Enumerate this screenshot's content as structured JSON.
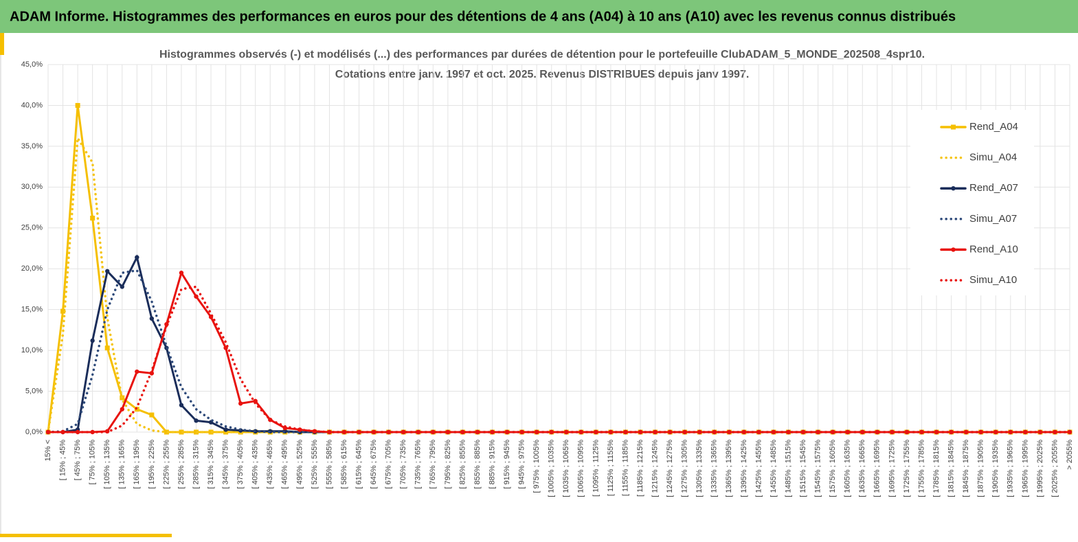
{
  "header": {
    "title": "ADAM Informe. Histogrammes des performances en euros pour des détentions de 4 ans (A04) à 10 ans (A10) avec les revenus connus distribués"
  },
  "chart_data": {
    "type": "line",
    "title": [
      "Histogrammes observés (-) et modélisés (...) des performances par durées de détention pour le portefeuille ClubADAM_5_MONDE_202508_4spr10.",
      "Cotations entre janv. 1997 et oct. 2025. Revenus DISTRIBUES depuis janv 1997."
    ],
    "categories": [
      "15% <",
      "[ 15% ; 45%",
      "[ 45% ; 75%",
      "[ 75% ; 105%",
      "[ 105% ; 135%",
      "[ 135% ; 165%",
      "[ 165% ; 195%",
      "[ 195% ; 225%",
      "[ 225% ; 255%",
      "[ 255% ; 285%",
      "[ 285% ; 315%",
      "[ 315% ; 345%",
      "[ 345% ; 375%",
      "[ 375% ; 405%",
      "[ 405% ; 435%",
      "[ 435% ; 465%",
      "[ 465% ; 495%",
      "[ 495% ; 525%",
      "[ 525% ; 555%",
      "[ 555% ; 585%",
      "[ 585% ; 615%",
      "[ 615% ; 645%",
      "[ 645% ; 675%",
      "[ 675% ; 705%",
      "[ 705% ; 735%",
      "[ 735% ; 765%",
      "[ 765% ; 795%",
      "[ 795% ; 825%",
      "[ 825% ; 855%",
      "[ 855% ; 885%",
      "[ 885% ; 915%",
      "[ 915% ; 945%",
      "[ 945% ; 975%",
      "[ 975% ; 1005%",
      "[ 1005% ; 1035%",
      "[ 1035% ; 1065%",
      "[ 1065% ; 1095%",
      "[ 1095% ; 1125%",
      "[ 1125% ; 1155%",
      "[ 1155% ; 1185%",
      "[ 1185% ; 1215%",
      "[ 1215% ; 1245%",
      "[ 1245% ; 1275%",
      "[ 1275% ; 1305%",
      "[ 1305% ; 1335%",
      "[ 1335% ; 1365%",
      "[ 1365% ; 1395%",
      "[ 1395% ; 1425%",
      "[ 1425% ; 1455%",
      "[ 1455% ; 1485%",
      "[ 1485% ; 1515%",
      "[ 1515% ; 1545%",
      "[ 1545% ; 1575%",
      "[ 1575% ; 1605%",
      "[ 1605% ; 1635%",
      "[ 1635% ; 1665%",
      "[ 1665% ; 1695%",
      "[ 1695% ; 1725%",
      "[ 1725% ; 1755%",
      "[ 1755% ; 1785%",
      "[ 1785% ; 1815%",
      "[ 1815% ; 1845%",
      "[ 1845% ; 1875%",
      "[ 1875% ; 1905%",
      "[ 1905% ; 1935%",
      "[ 1935% ; 1965%",
      "[ 1965% ; 1995%",
      "[ 1995% ; 2025%",
      "[ 2025% ; 2055%",
      "> 2055%"
    ],
    "series": [
      {
        "name": "Rend_A04",
        "color": "#f5bf00",
        "dash": "solid",
        "marker": "square",
        "values": [
          0,
          14.8,
          40,
          26.2,
          10.3,
          4.2,
          2.8,
          2.1,
          0,
          0,
          0,
          0,
          0,
          0,
          0,
          0,
          0,
          0,
          0,
          0,
          0,
          0,
          0,
          0,
          0,
          0,
          0,
          0,
          0,
          0,
          0,
          0,
          0,
          0,
          0,
          0,
          0,
          0,
          0,
          0,
          0,
          0,
          0,
          0,
          0,
          0,
          0,
          0,
          0,
          0,
          0,
          0,
          0,
          0,
          0,
          0,
          0,
          0,
          0,
          0,
          0,
          0,
          0,
          0,
          0,
          0,
          0,
          0,
          0,
          0
        ]
      },
      {
        "name": "Simu_A04",
        "color": "#f5c518",
        "dash": "dotted",
        "marker": null,
        "values": [
          0,
          12,
          36,
          33,
          14,
          4,
          1,
          0.2,
          0,
          0,
          0,
          0,
          0,
          0,
          0,
          0,
          0,
          0,
          0,
          0,
          0,
          0,
          0,
          0,
          0,
          0,
          0,
          0,
          0,
          0,
          0,
          0,
          0,
          0,
          0,
          0,
          0,
          0,
          0,
          0,
          0,
          0,
          0,
          0,
          0,
          0,
          0,
          0,
          0,
          0,
          0,
          0,
          0,
          0,
          0,
          0,
          0,
          0,
          0,
          0,
          0,
          0,
          0,
          0,
          0,
          0,
          0,
          0,
          0,
          0
        ]
      },
      {
        "name": "Rend_A07",
        "color": "#1a2d5a",
        "dash": "solid",
        "marker": "circle",
        "values": [
          0,
          0,
          0.3,
          11.2,
          19.7,
          17.8,
          21.4,
          13.9,
          10.3,
          3.3,
          1.4,
          1.2,
          0.3,
          0.2,
          0.1,
          0.1,
          0.1,
          0,
          0,
          0,
          0,
          0,
          0,
          0,
          0,
          0,
          0,
          0,
          0,
          0,
          0,
          0,
          0,
          0,
          0,
          0,
          0,
          0,
          0,
          0,
          0,
          0,
          0,
          0,
          0,
          0,
          0,
          0,
          0,
          0,
          0,
          0,
          0,
          0,
          0,
          0,
          0,
          0,
          0,
          0,
          0,
          0,
          0,
          0,
          0,
          0,
          0,
          0,
          0,
          0
        ]
      },
      {
        "name": "Simu_A07",
        "color": "#2e4a7a",
        "dash": "dotted",
        "marker": null,
        "values": [
          0,
          0.1,
          1,
          7,
          15,
          19.5,
          19.8,
          16,
          10.5,
          5.5,
          2.8,
          1.5,
          0.7,
          0.3,
          0.1,
          0,
          0,
          0,
          0,
          0,
          0,
          0,
          0,
          0,
          0,
          0,
          0,
          0,
          0,
          0,
          0,
          0,
          0,
          0,
          0,
          0,
          0,
          0,
          0,
          0,
          0,
          0,
          0,
          0,
          0,
          0,
          0,
          0,
          0,
          0,
          0,
          0,
          0,
          0,
          0,
          0,
          0,
          0,
          0,
          0,
          0,
          0,
          0,
          0,
          0,
          0,
          0,
          0,
          0,
          0
        ]
      },
      {
        "name": "Rend_A10",
        "color": "#e8130f",
        "dash": "solid",
        "marker": "circle",
        "values": [
          0,
          0,
          0,
          0,
          0.1,
          2.8,
          7.4,
          7.2,
          13.2,
          19.5,
          16.6,
          14.1,
          10.3,
          3.5,
          3.8,
          1.5,
          0.5,
          0.3,
          0.1,
          0,
          0,
          0,
          0,
          0,
          0,
          0,
          0,
          0,
          0,
          0,
          0,
          0,
          0,
          0,
          0,
          0,
          0,
          0,
          0,
          0,
          0,
          0,
          0,
          0,
          0,
          0,
          0,
          0,
          0,
          0,
          0,
          0,
          0,
          0,
          0,
          0,
          0,
          0,
          0,
          0,
          0,
          0,
          0,
          0,
          0,
          0,
          0,
          0,
          0,
          0
        ]
      },
      {
        "name": "Simu_A10",
        "color": "#e8130f",
        "dash": "dotted",
        "marker": null,
        "values": [
          0,
          0,
          0,
          0,
          0,
          0.8,
          3,
          7.5,
          13,
          17.5,
          17.8,
          14.5,
          11,
          6.5,
          3.5,
          1.5,
          0.7,
          0.3,
          0.1,
          0,
          0,
          0,
          0,
          0,
          0,
          0,
          0,
          0,
          0,
          0,
          0,
          0,
          0,
          0,
          0,
          0,
          0,
          0,
          0,
          0,
          0,
          0,
          0,
          0,
          0,
          0,
          0,
          0,
          0,
          0,
          0,
          0,
          0,
          0,
          0,
          0,
          0,
          0,
          0,
          0,
          0,
          0,
          0,
          0,
          0,
          0,
          0,
          0,
          0,
          0
        ]
      }
    ],
    "ylim": [
      0,
      45
    ],
    "yticks": [
      {
        "value": 0,
        "label": "0,0%"
      },
      {
        "value": 5,
        "label": "5,0%"
      },
      {
        "value": 10,
        "label": "10,0%"
      },
      {
        "value": 15,
        "label": "15,0%"
      },
      {
        "value": 20,
        "label": "20,0%"
      },
      {
        "value": 25,
        "label": "25,0%"
      },
      {
        "value": 30,
        "label": "30,0%"
      },
      {
        "value": 35,
        "label": "35,0%"
      },
      {
        "value": 40,
        "label": "40,0%"
      },
      {
        "value": 45,
        "label": "45,0%"
      }
    ],
    "grid": true,
    "legend": "right"
  }
}
